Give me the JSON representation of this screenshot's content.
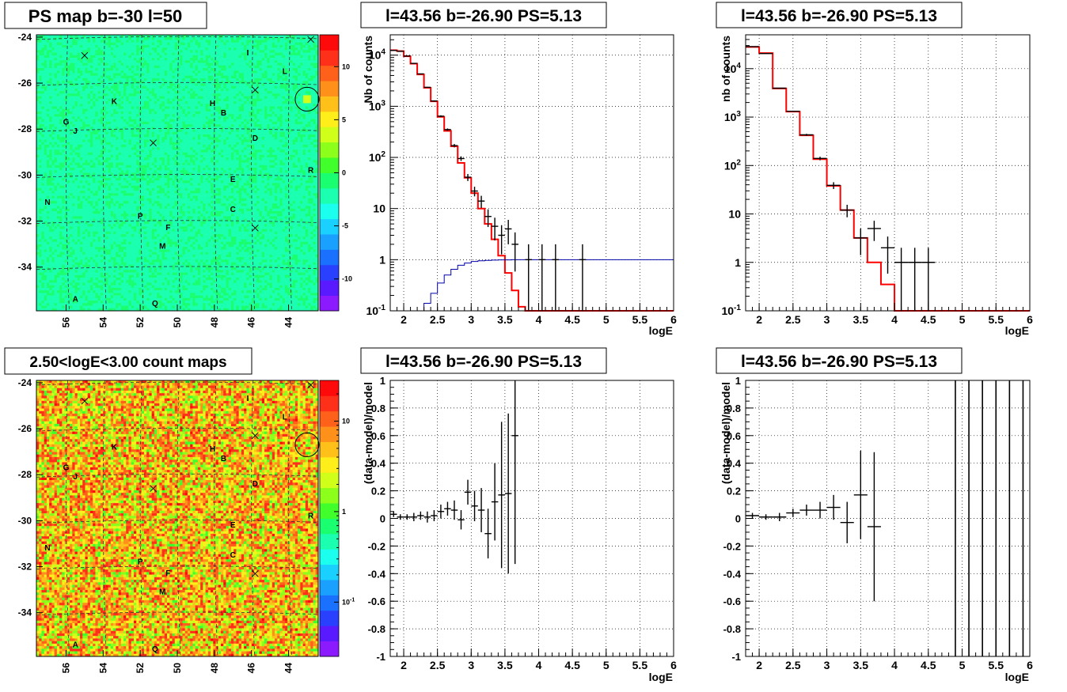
{
  "colors": {
    "data": "#000000",
    "model": "#ff0000",
    "expected": "#0000aa",
    "grid": "#000000"
  },
  "maps": [
    {
      "title": "PS map b=-30 l=50",
      "kind": "ps",
      "x_ticks": [
        "56",
        "54",
        "52",
        "50",
        "48",
        "46",
        "44"
      ],
      "x_tick_values": [
        56,
        54,
        52,
        50,
        48,
        46,
        44
      ],
      "y_ticks": [
        "-24",
        "-26",
        "-28",
        "-30",
        "-32",
        "-34"
      ],
      "y_tick_values": [
        -24,
        -26,
        -28,
        -30,
        -32,
        -34
      ],
      "l_range": [
        57.6,
        42.4
      ],
      "b_range": [
        -35.9,
        -23.9
      ],
      "colorbar_labels": [
        "10",
        "5",
        "0",
        "-5",
        "-10"
      ],
      "colorbar_values": [
        10,
        5,
        0,
        -5,
        -10
      ],
      "colorbar_range": [
        -13,
        13
      ],
      "source_labels": [
        {
          "t": "I",
          "l": 46.2,
          "b": -24.8
        },
        {
          "t": "L",
          "l": 44.2,
          "b": -25.6
        },
        {
          "t": "K",
          "l": 53.4,
          "b": -26.9
        },
        {
          "t": "H",
          "l": 48.1,
          "b": -27.0
        },
        {
          "t": "B",
          "l": 47.5,
          "b": -27.4
        },
        {
          "t": "G",
          "l": 56.0,
          "b": -27.8
        },
        {
          "t": "J",
          "l": 55.5,
          "b": -28.2
        },
        {
          "t": "D",
          "l": 45.8,
          "b": -28.5
        },
        {
          "t": "R",
          "l": 42.8,
          "b": -29.9
        },
        {
          "t": "E",
          "l": 47.0,
          "b": -30.3
        },
        {
          "t": "N",
          "l": 57.0,
          "b": -31.3
        },
        {
          "t": "C",
          "l": 47.0,
          "b": -31.6
        },
        {
          "t": "P",
          "l": 52.0,
          "b": -31.9
        },
        {
          "t": "F",
          "l": 50.5,
          "b": -32.4
        },
        {
          "t": "M",
          "l": 50.8,
          "b": -33.2
        },
        {
          "t": "A",
          "l": 55.5,
          "b": -35.5
        },
        {
          "t": "Q",
          "l": 51.2,
          "b": -35.7
        }
      ],
      "crosses": [
        {
          "l": 55.0,
          "b": -24.8
        },
        {
          "l": 45.8,
          "b": -26.3
        },
        {
          "l": 51.3,
          "b": -28.6
        },
        {
          "l": 45.8,
          "b": -32.3
        },
        {
          "l": 42.8,
          "b": -24.1
        }
      ],
      "circle": {
        "l": 43.0,
        "b": -26.7
      }
    },
    {
      "title": "2.50<logE<3.00 count maps",
      "kind": "counts",
      "x_ticks": [
        "56",
        "54",
        "52",
        "50",
        "48",
        "46",
        "44"
      ],
      "x_tick_values": [
        56,
        54,
        52,
        50,
        48,
        46,
        44
      ],
      "y_ticks": [
        "-24",
        "-26",
        "-28",
        "-30",
        "-32",
        "-34"
      ],
      "y_tick_values": [
        -24,
        -26,
        -28,
        -30,
        -32,
        -34
      ],
      "l_range": [
        57.6,
        42.4
      ],
      "b_range": [
        -35.9,
        -23.9
      ],
      "colorbar_labels": [
        "10",
        "1"
      ],
      "colorbar_values": [
        10,
        1
      ],
      "colorbar_label_minor": "10",
      "colorbar_label_minor_exp": "-1",
      "colorbar_log_range": [
        -1.6,
        1.45
      ],
      "source_labels": [
        {
          "t": "I",
          "l": 46.2,
          "b": -24.8
        },
        {
          "t": "L",
          "l": 44.2,
          "b": -25.6
        },
        {
          "t": "K",
          "l": 53.4,
          "b": -26.9
        },
        {
          "t": "H",
          "l": 48.1,
          "b": -27.0
        },
        {
          "t": "B",
          "l": 47.5,
          "b": -27.4
        },
        {
          "t": "G",
          "l": 56.0,
          "b": -27.8
        },
        {
          "t": "J",
          "l": 55.5,
          "b": -28.2
        },
        {
          "t": "D",
          "l": 45.8,
          "b": -28.5
        },
        {
          "t": "R",
          "l": 42.8,
          "b": -29.9
        },
        {
          "t": "E",
          "l": 47.0,
          "b": -30.3
        },
        {
          "t": "N",
          "l": 57.0,
          "b": -31.3
        },
        {
          "t": "C",
          "l": 47.0,
          "b": -31.6
        },
        {
          "t": "P",
          "l": 52.0,
          "b": -31.9
        },
        {
          "t": "F",
          "l": 50.5,
          "b": -32.4
        },
        {
          "t": "M",
          "l": 50.8,
          "b": -33.2
        },
        {
          "t": "A",
          "l": 55.5,
          "b": -35.5
        },
        {
          "t": "Q",
          "l": 51.2,
          "b": -35.7
        }
      ],
      "crosses": [
        {
          "l": 55.0,
          "b": -24.8
        },
        {
          "l": 45.8,
          "b": -26.3
        },
        {
          "l": 51.3,
          "b": -28.6
        },
        {
          "l": 45.8,
          "b": -32.3
        },
        {
          "l": 42.8,
          "b": -24.1
        }
      ],
      "circle": {
        "l": 43.0,
        "b": -26.7
      }
    }
  ],
  "chart_data": [
    {
      "type": "line",
      "title": "l=43.56 b=-26.90 PS=5.13",
      "xlabel": "logE",
      "ylabel": "Nb of counts",
      "log_y": true,
      "xlim": [
        1.8,
        6.0
      ],
      "ylim": [
        0.1,
        25000
      ],
      "grid": true,
      "x_ticks": [
        "2",
        "2.5",
        "3",
        "3.5",
        "4",
        "4.5",
        "5",
        "5.5",
        "6"
      ],
      "x_tick_values": [
        2,
        2.5,
        3,
        3.5,
        4,
        4.5,
        5,
        5.5,
        6
      ],
      "y_ticks": [
        {
          "v": 0.1,
          "base": "10",
          "exp": "-1"
        },
        {
          "v": 1,
          "base": "1"
        },
        {
          "v": 10,
          "base": "10"
        },
        {
          "v": 100,
          "base": "10",
          "exp": "2"
        },
        {
          "v": 1000,
          "base": "10",
          "exp": "3"
        },
        {
          "v": 10000,
          "base": "10",
          "exp": "4"
        }
      ],
      "bin_width": 0.1,
      "model_bins": {
        "x0": 1.8,
        "values": [
          12500,
          12000,
          9500,
          6800,
          4200,
          2300,
          1250,
          620,
          330,
          165,
          78,
          40,
          20,
          10,
          5,
          2.5,
          1.2,
          0.55,
          0.25,
          0.12,
          0.05,
          0.05,
          0.05,
          0.05,
          0.05,
          0.05,
          0.05,
          0.05,
          0.05,
          0.05,
          0.05,
          0.05,
          0.05,
          0.05,
          0.05,
          0.05,
          0.05,
          0.05,
          0.05,
          0.05,
          0.05,
          0.05
        ]
      },
      "expected_bins": {
        "x0": 2.2,
        "values": [
          0.1,
          0.14,
          0.22,
          0.35,
          0.5,
          0.65,
          0.78,
          0.86,
          0.92,
          0.95,
          0.97,
          0.98,
          0.99,
          0.99,
          1,
          1,
          1,
          1,
          1,
          1,
          1,
          1,
          1,
          1,
          1,
          1,
          1,
          1,
          1,
          1,
          1,
          1,
          1,
          1,
          1,
          1,
          1,
          1
        ]
      },
      "data_points": [
        {
          "x": 1.85,
          "y": 12400
        },
        {
          "x": 1.95,
          "y": 11900
        },
        {
          "x": 2.05,
          "y": 9600
        },
        {
          "x": 2.15,
          "y": 6900
        },
        {
          "x": 2.25,
          "y": 4300
        },
        {
          "x": 2.35,
          "y": 2350
        },
        {
          "x": 2.45,
          "y": 1270
        },
        {
          "x": 2.55,
          "y": 640
        },
        {
          "x": 2.65,
          "y": 350
        },
        {
          "x": 2.75,
          "y": 170
        },
        {
          "x": 2.85,
          "y": 95
        },
        {
          "x": 2.95,
          "y": 41
        },
        {
          "x": 3.05,
          "y": 22
        },
        {
          "x": 3.15,
          "y": 14
        },
        {
          "x": 3.25,
          "y": 7
        },
        {
          "x": 3.35,
          "y": 4.5
        },
        {
          "x": 3.45,
          "y": 3
        },
        {
          "x": 3.55,
          "y": 4
        },
        {
          "x": 3.65,
          "y": 2
        },
        {
          "x": 3.85,
          "y": 1
        },
        {
          "x": 4.05,
          "y": 1
        },
        {
          "x": 4.25,
          "y": 1
        },
        {
          "x": 4.65,
          "y": 1
        }
      ]
    },
    {
      "type": "line",
      "title": "l=43.56 b=-26.90 PS=5.13",
      "xlabel": "logE",
      "ylabel": "nb of counts",
      "log_y": true,
      "xlim": [
        1.8,
        6.0
      ],
      "ylim": [
        0.1,
        50000
      ],
      "grid": true,
      "x_ticks": [
        "2",
        "2.5",
        "3",
        "3.5",
        "4",
        "4.5",
        "5",
        "5.5",
        "6"
      ],
      "x_tick_values": [
        2,
        2.5,
        3,
        3.5,
        4,
        4.5,
        5,
        5.5,
        6
      ],
      "y_ticks": [
        {
          "v": 0.1,
          "base": "10",
          "exp": "-1"
        },
        {
          "v": 1,
          "base": "1"
        },
        {
          "v": 10,
          "base": "10"
        },
        {
          "v": 100,
          "base": "10",
          "exp": "2"
        },
        {
          "v": 1000,
          "base": "10",
          "exp": "3"
        },
        {
          "v": 10000,
          "base": "10",
          "exp": "4"
        }
      ],
      "bin_width": 0.2,
      "model_bins": {
        "x0": 1.8,
        "values": [
          28000,
          21000,
          3900,
          1300,
          420,
          135,
          38,
          12,
          3.2,
          1,
          0.35,
          0.05,
          0.05,
          0.05,
          0.05,
          0.05,
          0.05,
          0.05,
          0.05,
          0.05,
          0.05
        ]
      },
      "data_points": [
        {
          "x": 1.9,
          "y": 28500
        },
        {
          "x": 2.1,
          "y": 20500
        },
        {
          "x": 2.3,
          "y": 3950
        },
        {
          "x": 2.5,
          "y": 1320
        },
        {
          "x": 2.7,
          "y": 430
        },
        {
          "x": 2.9,
          "y": 140
        },
        {
          "x": 3.1,
          "y": 39
        },
        {
          "x": 3.3,
          "y": 12
        },
        {
          "x": 3.5,
          "y": 3.2
        },
        {
          "x": 3.7,
          "y": 5
        },
        {
          "x": 3.9,
          "y": 2
        },
        {
          "x": 4.1,
          "y": 1
        },
        {
          "x": 4.3,
          "y": 1
        },
        {
          "x": 4.5,
          "y": 1
        }
      ]
    },
    {
      "type": "scatter",
      "title": "l=43.56 b=-26.90 PS=5.13",
      "xlabel": "logE",
      "ylabel": "(data-model)/model",
      "log_y": false,
      "xlim": [
        1.8,
        6.0
      ],
      "ylim": [
        -1,
        1
      ],
      "grid": true,
      "x_ticks": [
        "2",
        "2.5",
        "3",
        "3.5",
        "4",
        "4.5",
        "5",
        "5.5",
        "6"
      ],
      "x_tick_values": [
        2,
        2.5,
        3,
        3.5,
        4,
        4.5,
        5,
        5.5,
        6
      ],
      "y_ticks": [
        "1",
        "0.8",
        "0.6",
        "0.4",
        "0.2",
        "0",
        "-0.2",
        "-0.4",
        "-0.6",
        "-0.8",
        "-1"
      ],
      "y_tick_values": [
        1,
        0.8,
        0.6,
        0.4,
        0.2,
        0,
        -0.2,
        -0.4,
        -0.6,
        -0.8,
        -1
      ],
      "bin_width": 0.1,
      "points": [
        {
          "x": 1.85,
          "y": 0.03,
          "e": 0.02
        },
        {
          "x": 1.95,
          "y": 0.01,
          "e": 0.02
        },
        {
          "x": 2.05,
          "y": 0.01,
          "e": 0.02
        },
        {
          "x": 2.15,
          "y": 0.01,
          "e": 0.03
        },
        {
          "x": 2.25,
          "y": 0.02,
          "e": 0.03
        },
        {
          "x": 2.35,
          "y": 0.01,
          "e": 0.04
        },
        {
          "x": 2.45,
          "y": 0.02,
          "e": 0.04
        },
        {
          "x": 2.55,
          "y": 0.05,
          "e": 0.05
        },
        {
          "x": 2.65,
          "y": 0.07,
          "e": 0.05
        },
        {
          "x": 2.75,
          "y": 0.06,
          "e": 0.07
        },
        {
          "x": 2.85,
          "y": -0.01,
          "e": 0.07
        },
        {
          "x": 2.95,
          "y": 0.19,
          "e": 0.09
        },
        {
          "x": 3.05,
          "y": 0.09,
          "e": 0.11
        },
        {
          "x": 3.15,
          "y": 0.06,
          "e": 0.16
        },
        {
          "x": 3.25,
          "y": -0.11,
          "e": 0.18
        },
        {
          "x": 3.35,
          "y": 0.12,
          "e": 0.28
        },
        {
          "x": 3.45,
          "y": 0.17,
          "e": 0.53
        },
        {
          "x": 3.55,
          "y": 0.18,
          "e": 0.58
        },
        {
          "x": 3.65,
          "y": 0.6,
          "e": 0.93
        }
      ]
    },
    {
      "type": "scatter",
      "title": "l=43.56 b=-26.90 PS=5.13",
      "xlabel": "logE",
      "ylabel": "(data-model)/model",
      "log_y": false,
      "xlim": [
        1.8,
        6.0
      ],
      "ylim": [
        -1,
        1
      ],
      "grid": true,
      "x_ticks": [
        "2",
        "2.5",
        "3",
        "3.5",
        "4",
        "4.5",
        "5",
        "5.5",
        "6"
      ],
      "x_tick_values": [
        2,
        2.5,
        3,
        3.5,
        4,
        4.5,
        5,
        5.5,
        6
      ],
      "y_ticks": [
        "1",
        "0.8",
        "0.6",
        "0.4",
        "0.2",
        "0",
        "-0.2",
        "-0.4",
        "-0.6",
        "-0.8",
        "-1"
      ],
      "y_tick_values": [
        1,
        0.8,
        0.6,
        0.4,
        0.2,
        0,
        -0.2,
        -0.4,
        -0.6,
        -0.8,
        -1
      ],
      "bin_width": 0.2,
      "points": [
        {
          "x": 1.9,
          "y": 0.02,
          "e": 0.02
        },
        {
          "x": 2.1,
          "y": 0.01,
          "e": 0.02
        },
        {
          "x": 2.3,
          "y": 0.01,
          "e": 0.03
        },
        {
          "x": 2.5,
          "y": 0.04,
          "e": 0.03
        },
        {
          "x": 2.7,
          "y": 0.06,
          "e": 0.04
        },
        {
          "x": 2.9,
          "y": 0.06,
          "e": 0.06
        },
        {
          "x": 3.1,
          "y": 0.08,
          "e": 0.09
        },
        {
          "x": 3.3,
          "y": -0.03,
          "e": 0.15
        },
        {
          "x": 3.5,
          "y": 0.17,
          "e": 0.32
        },
        {
          "x": 3.7,
          "y": -0.06,
          "e": 0.54
        }
      ],
      "vertical_lines_x": [
        4.9,
        5.1,
        5.3,
        5.5,
        5.7,
        5.9
      ]
    }
  ]
}
